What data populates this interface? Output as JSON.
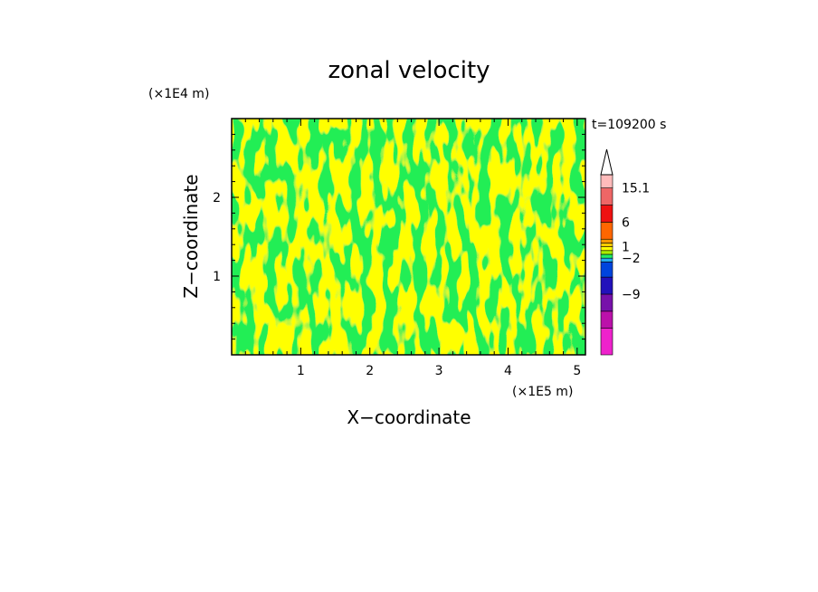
{
  "chart_data": {
    "type": "heatmap",
    "title": "zonal velocity",
    "xlabel": "X−coordinate",
    "ylabel": "Z−coordinate",
    "x_unit": "(×1E5 m)",
    "y_unit": "(×1E4 m)",
    "time_label": "t=109200 s",
    "xlim": [
      0,
      5.12
    ],
    "ylim": [
      0,
      3.0
    ],
    "x_ticks": [
      "1",
      "2",
      "3",
      "4",
      "5"
    ],
    "y_ticks": [
      "1",
      "2"
    ],
    "dominant_field_colors": [
      "#ffff00",
      "#22ee55"
    ],
    "colorbar": {
      "labels": [
        "15.1",
        "6",
        "1",
        "−2",
        "−9"
      ],
      "levels": [
        -15,
        -12,
        -9,
        -6,
        -3,
        -2,
        -1,
        0,
        1,
        2,
        3,
        6,
        9,
        12,
        15.1
      ],
      "colors": [
        "#ee22cc",
        "#bb11aa",
        "#7711aa",
        "#2211bb",
        "#0044dd",
        "#22aaee",
        "#22ee66",
        "#aaee00",
        "#ffff00",
        "#ffcc00",
        "#ff9900",
        "#ff6600",
        "#ee1111",
        "#ee6666",
        "#ffbbbb"
      ],
      "extend_max": true
    }
  }
}
